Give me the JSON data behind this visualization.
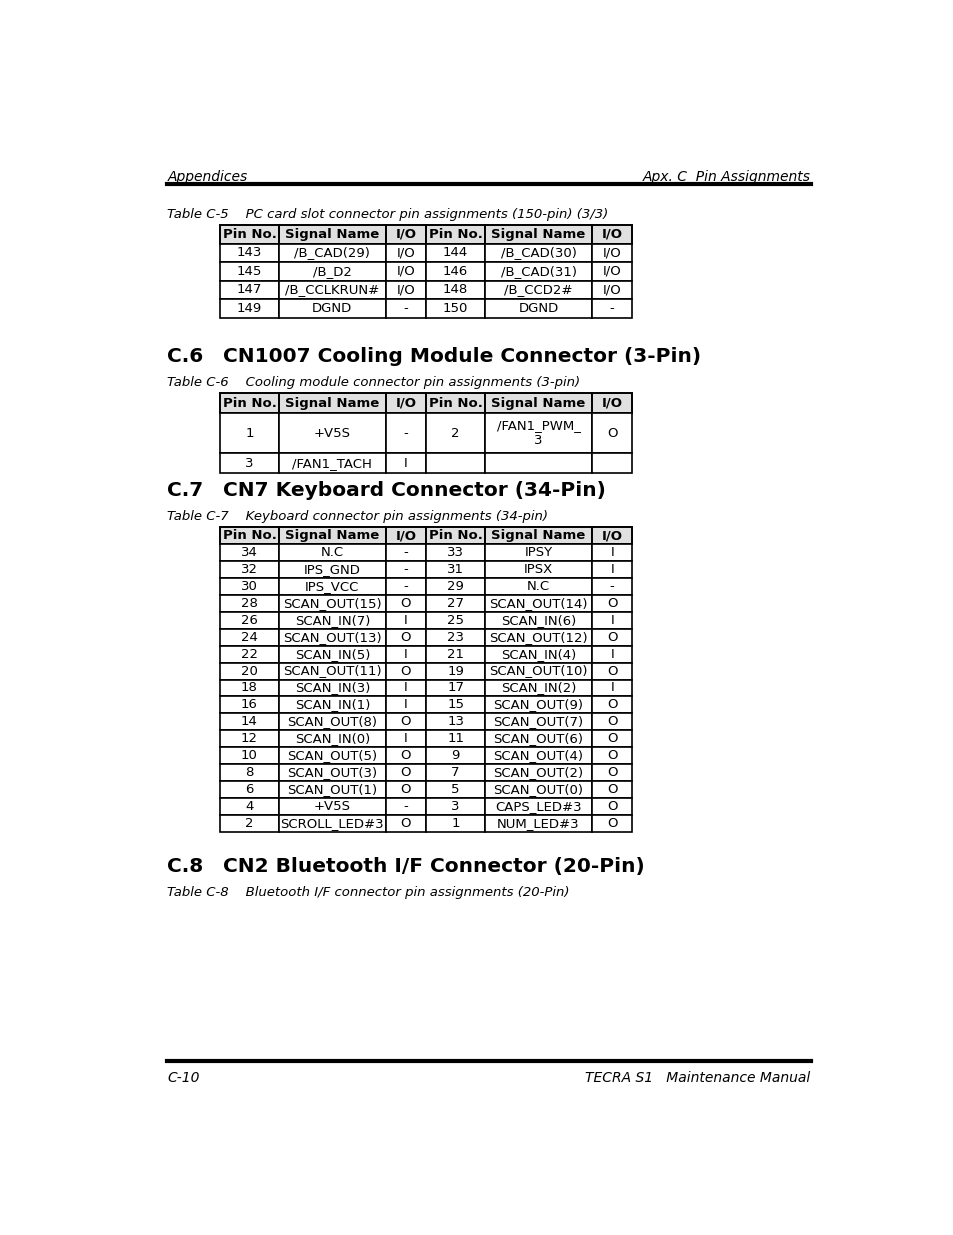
{
  "header_left": "Appendices",
  "header_right": "Apx. C  Pin Assignments",
  "footer_left": "C-10",
  "footer_right": "TECRA S1   Maintenance Manual",
  "table5_caption": "Table C-5    PC card slot connector pin assignments (150-pin) (3/3)",
  "table5_headers": [
    "Pin No.",
    "Signal Name",
    "I/O",
    "Pin No.",
    "Signal Name",
    "I/O"
  ],
  "table5_rows": [
    [
      "143",
      "/B_CAD(29)",
      "I/O",
      "144",
      "/B_CAD(30)",
      "I/O"
    ],
    [
      "145",
      "/B_D2",
      "I/O",
      "146",
      "/B_CAD(31)",
      "I/O"
    ],
    [
      "147",
      "/B_CCLKRUN#",
      "I/O",
      "148",
      "/B_CCD2#",
      "I/O"
    ],
    [
      "149",
      "DGND",
      "-",
      "150",
      "DGND",
      "-"
    ]
  ],
  "section6_heading_num": "C.6",
  "section6_heading_text": "CN1007 Cooling Module Connector (3-Pin)",
  "table6_caption": "Table C-6    Cooling module connector pin assignments (3-pin)",
  "table6_headers": [
    "Pin No.",
    "Signal Name",
    "I/O",
    "Pin No.",
    "Signal Name",
    "I/O"
  ],
  "table6_rows": [
    [
      "1",
      "+V5S",
      "-",
      "2",
      "/FAN1_PWM_\n3",
      "O"
    ],
    [
      "3",
      "/FAN1_TACH",
      "I",
      "",
      "",
      ""
    ]
  ],
  "section7_heading_num": "C.7",
  "section7_heading_text": "CN7 Keyboard Connector (34-Pin)",
  "table7_caption": "Table C-7    Keyboard connector pin assignments (34-pin)",
  "table7_headers": [
    "Pin No.",
    "Signal Name",
    "I/O",
    "Pin No.",
    "Signal Name",
    "I/O"
  ],
  "table7_rows": [
    [
      "34",
      "N.C",
      "-",
      "33",
      "IPSY",
      "I"
    ],
    [
      "32",
      "IPS_GND",
      "-",
      "31",
      "IPSX",
      "I"
    ],
    [
      "30",
      "IPS_VCC",
      "-",
      "29",
      "N.C",
      "-"
    ],
    [
      "28",
      "SCAN_OUT(15)",
      "O",
      "27",
      "SCAN_OUT(14)",
      "O"
    ],
    [
      "26",
      "SCAN_IN(7)",
      "I",
      "25",
      "SCAN_IN(6)",
      "I"
    ],
    [
      "24",
      "SCAN_OUT(13)",
      "O",
      "23",
      "SCAN_OUT(12)",
      "O"
    ],
    [
      "22",
      "SCAN_IN(5)",
      "I",
      "21",
      "SCAN_IN(4)",
      "I"
    ],
    [
      "20",
      "SCAN_OUT(11)",
      "O",
      "19",
      "SCAN_OUT(10)",
      "O"
    ],
    [
      "18",
      "SCAN_IN(3)",
      "I",
      "17",
      "SCAN_IN(2)",
      "I"
    ],
    [
      "16",
      "SCAN_IN(1)",
      "I",
      "15",
      "SCAN_OUT(9)",
      "O"
    ],
    [
      "14",
      "SCAN_OUT(8)",
      "O",
      "13",
      "SCAN_OUT(7)",
      "O"
    ],
    [
      "12",
      "SCAN_IN(0)",
      "I",
      "11",
      "SCAN_OUT(6)",
      "O"
    ],
    [
      "10",
      "SCAN_OUT(5)",
      "O",
      "9",
      "SCAN_OUT(4)",
      "O"
    ],
    [
      "8",
      "SCAN_OUT(3)",
      "O",
      "7",
      "SCAN_OUT(2)",
      "O"
    ],
    [
      "6",
      "SCAN_OUT(1)",
      "O",
      "5",
      "SCAN_OUT(0)",
      "O"
    ],
    [
      "4",
      "+V5S",
      "-",
      "3",
      "CAPS_LED#3",
      "O"
    ],
    [
      "2",
      "SCROLL_LED#3",
      "O",
      "1",
      "NUM_LED#3",
      "O"
    ]
  ],
  "section8_heading_num": "C.8",
  "section8_heading_text": "CN2 Bluetooth I/F Connector (20-Pin)",
  "table8_caption": "Table C-8    Bluetooth I/F connector pin assignments (20-Pin)",
  "bg_color": "#ffffff"
}
